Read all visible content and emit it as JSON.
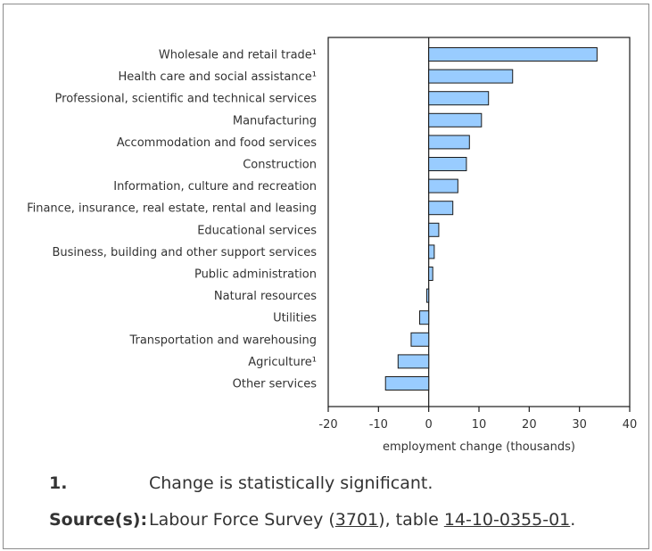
{
  "chart_data": {
    "type": "bar",
    "orientation": "horizontal",
    "categories": [
      "Wholesale and retail trade¹",
      "Health care and social assistance¹",
      "Professional, scientific and technical services",
      "Manufacturing",
      "Accommodation and food services",
      "Construction",
      "Information, culture and recreation",
      "Finance, insurance, real estate, rental and leasing",
      "Educational services",
      "Business, building and other support services",
      "Public administration",
      "Natural resources",
      "Utilities",
      "Transportation and warehousing",
      "Agriculture¹",
      "Other services"
    ],
    "values": [
      33.5,
      16.7,
      11.9,
      10.5,
      8.1,
      7.5,
      5.8,
      4.8,
      2.0,
      1.1,
      0.8,
      -0.4,
      -1.8,
      -3.5,
      -6.1,
      -8.6
    ],
    "xlabel": "employment change (thousands)",
    "xlim": [
      -20,
      40
    ],
    "xticks": [
      -20,
      -10,
      0,
      10,
      20,
      30,
      40
    ],
    "bar_color": "#99ccff",
    "bar_edge_color": "#1a1a1a",
    "grid": false
  },
  "footnote": {
    "key": "1.",
    "text": "Change is statistically significant."
  },
  "source": {
    "key": "Source(s):",
    "prefix": "Labour Force Survey (",
    "survey_id": "3701",
    "middle": "), table ",
    "table_id": "14-10-0355-01",
    "suffix": "."
  }
}
